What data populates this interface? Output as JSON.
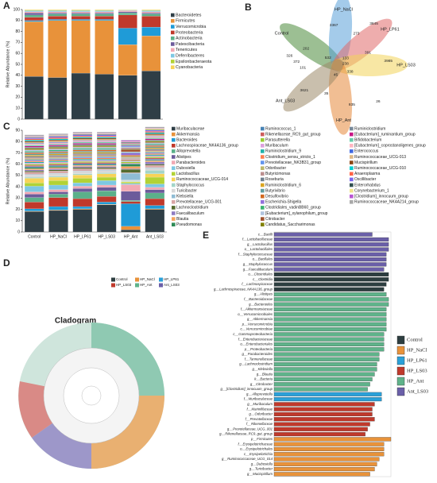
{
  "chart_data": [
    {
      "panel": "A",
      "type": "stacked-bar",
      "y_label": "Relative Abundance (%)",
      "categories": [
        null,
        null,
        null,
        null,
        null,
        null
      ],
      "ylim": [
        0,
        100
      ],
      "yticks": [
        0,
        10,
        20,
        30,
        40,
        50,
        60,
        70,
        80,
        90,
        100
      ],
      "series": [
        {
          "name": "Bacteroidetes",
          "color": "#2f3e46",
          "values": [
            39,
            38,
            42,
            41,
            40,
            44
          ]
        },
        {
          "name": "Firmicutes",
          "color": "#e8923a",
          "values": [
            50,
            52,
            48,
            49,
            28,
            32
          ]
        },
        {
          "name": "Verrucomicrobia",
          "color": "#1f9bd7",
          "values": [
            1,
            1,
            1,
            1,
            15,
            8
          ]
        },
        {
          "name": "Proteobacteria",
          "color": "#c0392b",
          "values": [
            3,
            3,
            3,
            3,
            12,
            10
          ]
        },
        {
          "name": "Actinobacteria",
          "color": "#5bb08a",
          "values": [
            2,
            2,
            2,
            2,
            2,
            2
          ]
        },
        {
          "name": "Patescibacteria",
          "color": "#6c5b9b",
          "values": [
            2,
            1,
            1,
            1,
            1,
            1
          ]
        },
        {
          "name": "Tenericutes",
          "color": "#f2a9b4",
          "values": [
            1,
            1,
            1,
            1,
            1,
            1
          ]
        },
        {
          "name": "Deferribacteres",
          "color": "#7ec8e3",
          "values": [
            1,
            1,
            1,
            1,
            0.5,
            1
          ]
        },
        {
          "name": "Epsilonbacteraeota",
          "color": "#b2d235",
          "values": [
            0.5,
            0.5,
            0.5,
            0.5,
            0.3,
            0.5
          ]
        },
        {
          "name": "Cyanobacteria",
          "color": "#f7d358",
          "values": [
            0.5,
            0.5,
            0.5,
            0.5,
            0.2,
            0.5
          ]
        }
      ]
    },
    {
      "panel": "B",
      "type": "venn",
      "sets": [
        {
          "name": "Control",
          "color": "#4a8a3a"
        },
        {
          "name": "HP_NaCl",
          "color": "#5aa0d8"
        },
        {
          "name": "HP_LP61",
          "color": "#e06a6a"
        },
        {
          "name": "HP_LS03",
          "color": "#f3d35a"
        },
        {
          "name": "HP_Ant",
          "color": "#e6883a"
        },
        {
          "name": "Ant_LS03",
          "color": "#9c8a6a"
        }
      ],
      "counts": [
        202,
        3367,
        273,
        3845,
        391,
        3985,
        26,
        835,
        35,
        3621,
        101,
        372,
        326,
        532,
        133,
        338,
        45,
        238
      ]
    },
    {
      "panel": "C",
      "type": "stacked-bar",
      "y_label": "Relative Abundance (%)",
      "categories": [
        "Control",
        "HP_NaCl",
        "HP_LP61",
        "HP_LS03",
        "HP_Ant",
        "Ant_LS03"
      ],
      "ylim": [
        0,
        90
      ],
      "yticks": [
        0,
        10,
        20,
        30,
        40,
        50,
        60,
        70,
        80,
        90
      ],
      "series": [
        {
          "name": "Muribaculaceae",
          "color": "#2f3e46",
          "values": [
            18,
            19,
            20,
            24,
            2,
            20
          ]
        },
        {
          "name": "Akkermansia",
          "color": "#e8923a",
          "values": [
            0.5,
            0.5,
            0.5,
            0.5,
            3,
            0.5
          ]
        },
        {
          "name": "Bacteroides",
          "color": "#1f9bd7",
          "values": [
            2,
            3,
            2,
            2,
            20,
            3
          ]
        },
        {
          "name": "Lachnospiraceae_NK4A136_group",
          "color": "#c0392b",
          "values": [
            6,
            8,
            7,
            5,
            2,
            6
          ]
        },
        {
          "name": "Alloprevotella",
          "color": "#5bb08a",
          "values": [
            4,
            3,
            6,
            5,
            1,
            5
          ]
        },
        {
          "name": "Alistipes",
          "color": "#6c5b9b",
          "values": [
            3,
            2,
            3,
            3,
            8,
            3
          ]
        },
        {
          "name": "Parabacteroides",
          "color": "#f2a9b4",
          "values": [
            2,
            2,
            2,
            2,
            6,
            2
          ]
        },
        {
          "name": "Dubosiella",
          "color": "#7ec8e3",
          "values": [
            5,
            4,
            3,
            4,
            1,
            3
          ]
        },
        {
          "name": "Lactobacillus",
          "color": "#b2d235",
          "values": [
            3,
            4,
            4,
            3,
            1,
            6
          ]
        },
        {
          "name": "Ruminococcaceae_UCG-014",
          "color": "#f7d358",
          "values": [
            4,
            3,
            3,
            3,
            0.5,
            3
          ]
        },
        {
          "name": "Staphylococcus",
          "color": "#a3d5c9",
          "values": [
            1,
            1,
            1,
            1,
            0.5,
            3
          ]
        },
        {
          "name": "Turicibacter",
          "color": "#d8d8d8",
          "values": [
            2,
            2,
            2,
            2,
            1,
            2
          ]
        },
        {
          "name": "Klebsiella",
          "color": "#8fbcd4",
          "values": [
            0.5,
            0.5,
            0.5,
            0.5,
            6,
            0.5
          ]
        },
        {
          "name": "Prevotellaceae_UCG-001",
          "color": "#d9a6a6",
          "values": [
            2,
            2,
            2,
            1,
            0.5,
            2
          ]
        },
        {
          "name": "Lachnoclostridium",
          "color": "#556b2f",
          "values": [
            1,
            1,
            1,
            1,
            3,
            1
          ]
        },
        {
          "name": "Faecalibaculum",
          "color": "#8e7cc3",
          "values": [
            1,
            1,
            1,
            1,
            0.5,
            2
          ]
        },
        {
          "name": "Blautia",
          "color": "#f4a460",
          "values": [
            1,
            1,
            1,
            1,
            2,
            1
          ]
        },
        {
          "name": "Pseudomonas",
          "color": "#2e8b57",
          "values": [
            1,
            1,
            0.5,
            0.5,
            2,
            0.5
          ]
        },
        {
          "name": "Ruminococcus_1",
          "color": "#4682b4",
          "values": [
            1,
            1,
            1,
            1,
            0.5,
            1
          ]
        },
        {
          "name": "Rikenellaceae_RC9_gut_group",
          "color": "#cd5c5c",
          "values": [
            1,
            1,
            1,
            1,
            0.5,
            1
          ]
        },
        {
          "name": "Parasutterella",
          "color": "#9acd32",
          "values": [
            1,
            1,
            1,
            1,
            1,
            1
          ]
        },
        {
          "name": "Muribaculum",
          "color": "#dda0dd",
          "values": [
            1,
            1,
            1,
            1,
            0.5,
            1
          ]
        },
        {
          "name": "Ruminiclostridium_9",
          "color": "#20b2aa",
          "values": [
            1,
            1,
            1,
            1,
            0.5,
            1
          ]
        },
        {
          "name": "Clostridium_sensu_stricto_1",
          "color": "#ff7f50",
          "values": [
            1,
            1,
            1,
            1,
            1,
            1
          ]
        },
        {
          "name": "Prevotellaceae_NK3B31_group",
          "color": "#6495ed",
          "values": [
            1,
            1,
            1,
            1,
            0.5,
            1
          ]
        },
        {
          "name": "Odoribacter",
          "color": "#bdb76b",
          "values": [
            1,
            1,
            1,
            1,
            0.5,
            1
          ]
        },
        {
          "name": "Butyricimonas",
          "color": "#bc8f8f",
          "values": [
            1,
            1,
            1,
            1,
            0.5,
            1
          ]
        },
        {
          "name": "Roseburia",
          "color": "#708090",
          "values": [
            1,
            1,
            1,
            1,
            0.5,
            1
          ]
        },
        {
          "name": "Ruminiclostridium_6",
          "color": "#daa520",
          "values": [
            1,
            1,
            1,
            1,
            0.5,
            1
          ]
        },
        {
          "name": "Butyrivibrio",
          "color": "#5f9ea0",
          "values": [
            1,
            1,
            1,
            1,
            0.5,
            1
          ]
        },
        {
          "name": "Desulfovibrio",
          "color": "#d2691e",
          "values": [
            1,
            1,
            1,
            1,
            1,
            1
          ]
        },
        {
          "name": "Escherichia-Shigella",
          "color": "#9370db",
          "values": [
            0.5,
            0.5,
            0.5,
            0.5,
            2,
            0.5
          ]
        },
        {
          "name": "Clostridiales_vadinBB60_group",
          "color": "#3cb371",
          "values": [
            1,
            1,
            1,
            1,
            0.5,
            1
          ]
        },
        {
          "name": "[Eubacterium]_xylanophilum_group",
          "color": "#b0c4de",
          "values": [
            1,
            1,
            1,
            1,
            0.5,
            1
          ]
        },
        {
          "name": "Citrobacter",
          "color": "#a0522d",
          "values": [
            0.5,
            0.5,
            0.5,
            0.5,
            2,
            0.5
          ]
        },
        {
          "name": "Candidatus_Saccharimonas",
          "color": "#808000",
          "values": [
            1,
            1,
            1,
            1,
            0.5,
            1
          ]
        },
        {
          "name": "Ruminiclostridium",
          "color": "#778899",
          "values": [
            1,
            1,
            1,
            1,
            0.5,
            1
          ]
        },
        {
          "name": "[Eubacterium]_ruminantium_group",
          "color": "#c71585",
          "values": [
            1,
            1,
            1,
            1,
            0.5,
            1
          ]
        },
        {
          "name": "Bifidobacterium",
          "color": "#66cdaa",
          "values": [
            1,
            1,
            1,
            1,
            0.5,
            1
          ]
        },
        {
          "name": "[Eubacterium]_coprostanoligenes_group",
          "color": "#ffb6c1",
          "values": [
            1,
            1,
            1,
            1,
            0.5,
            1
          ]
        },
        {
          "name": "Enterococcus",
          "color": "#4169e1",
          "values": [
            0.5,
            0.5,
            0.5,
            0.5,
            1,
            0.5
          ]
        },
        {
          "name": "Ruminococcaceae_UCG-013",
          "color": "#deb887",
          "values": [
            1,
            1,
            1,
            1,
            0.5,
            1
          ]
        },
        {
          "name": "Mucispirillum",
          "color": "#8b4513",
          "values": [
            1,
            1,
            1,
            1,
            0.5,
            1
          ]
        },
        {
          "name": "Ruminococcaceae_UCG-010",
          "color": "#00ced1",
          "values": [
            1,
            1,
            1,
            1,
            0.5,
            1
          ]
        },
        {
          "name": "Anaeroplasma",
          "color": "#ff6347",
          "values": [
            1,
            1,
            1,
            1,
            0.5,
            1
          ]
        },
        {
          "name": "Oscillibacter",
          "color": "#7b68ee",
          "values": [
            1,
            1,
            1,
            1,
            0.5,
            1
          ]
        },
        {
          "name": "Enterorhabdus",
          "color": "#2f4f4f",
          "values": [
            0.5,
            0.5,
            0.5,
            0.5,
            0.5,
            0.5
          ]
        },
        {
          "name": "Corynebacterium_1",
          "color": "#f0e68c",
          "values": [
            0.5,
            0.5,
            0.5,
            0.5,
            0.5,
            1
          ]
        },
        {
          "name": "[Clostridium]_innocuum_group",
          "color": "#ba55d3",
          "values": [
            0.5,
            0.5,
            0.5,
            0.5,
            1,
            0.5
          ]
        },
        {
          "name": "Ruminococcaceae_NK4A214_group",
          "color": "#a9a9a9",
          "values": [
            1,
            1,
            1,
            1,
            0.5,
            1
          ]
        }
      ]
    },
    {
      "panel": "E",
      "type": "hbar",
      "xlim": [
        0,
        5
      ],
      "series": [
        {
          "name": "Control",
          "color": "#2d3e40",
          "categories": [
            "o__Clostridiales",
            "c__Clostridia",
            "f__Lachnospiraceae",
            "g__Lachnospiraceae_NK4A136_group"
          ],
          "values": [
            4.9,
            4.9,
            4.8,
            4.7
          ]
        },
        {
          "name": "HP_NaCl",
          "color": "#e8923a",
          "categories": [
            "p__Firmicutes",
            "f__Erysipelotrichaceae",
            "o__Erysipelotrichales",
            "c__Erysipelotrichia",
            "g__Ruminococcaceae_UCG_014",
            "g__Dubosiella",
            "g__Turicibacter",
            "g__Mucispirillum"
          ],
          "values": [
            5.0,
            4.7,
            4.7,
            4.7,
            4.5,
            4.4,
            4.3,
            4.1
          ]
        },
        {
          "name": "HP_LP61",
          "color": "#2aa0d8",
          "categories": [
            "g__Alloprevotella",
            "f__Muribaculaceae"
          ],
          "values": [
            4.6,
            4.6
          ]
        },
        {
          "name": "HP_LS03",
          "color": "#c0392b",
          "categories": [
            "g__Muribaculum",
            "f__Marinifilaceae",
            "g__Odoribacter",
            "f__Prevotellaceae",
            "f__Rikenellaceae",
            "g__Prevotellaceae_UCG_001",
            "g__Rikenellaceae_RC9_gut_group"
          ],
          "values": [
            4.3,
            4.2,
            4.2,
            4.3,
            4.1,
            4.0,
            3.9
          ]
        },
        {
          "name": "HP_Ant",
          "color": "#5fb38a",
          "categories": [
            "g__Alistipes",
            "f__Bacteroidaceae",
            "g__Bacteroides",
            "f__Akkermansiaceae",
            "o__Verrucomicrobiales",
            "g__Akkermansia",
            "p__Verrucomicrobia",
            "c__Verrucomicrobiae",
            "c__Gammaproteobacteria",
            "f__Enterobacteriaceae",
            "o__Enterobacteriales",
            "p__Proteobacteria",
            "g__Parabacteroides",
            "f__Tannerellaceae",
            "g__Lachnoclostridium",
            "g__Klebsiella",
            "g__Blautia",
            "k__Bacteria",
            "g__Citrobacter",
            "g__[Clostridium]_innocuum_group"
          ],
          "values": [
            4.8,
            4.9,
            4.9,
            4.8,
            4.8,
            4.8,
            4.8,
            4.8,
            4.7,
            4.7,
            4.7,
            4.7,
            4.5,
            4.5,
            4.4,
            4.4,
            4.3,
            4.2,
            4.1,
            4.0
          ]
        },
        {
          "name": "Ant_LS03",
          "color": "#6a5fa8",
          "categories": [
            "c__Bacilli",
            "f__Lactobacillaceae",
            "g__Lactobacillus",
            "o__Lactobacillales",
            "f__Staphylococcaceae",
            "o__Bacillales",
            "g__Staphylococcus",
            "g__Faecalibaculum"
          ],
          "values": [
            4.2,
            4.9,
            4.9,
            4.9,
            4.8,
            4.8,
            4.8,
            4.7
          ]
        }
      ],
      "order": [
        "Ant_LS03",
        "Control",
        "HP_Ant",
        "HP_LP61",
        "HP_LS03",
        "HP_NaCl"
      ]
    }
  ],
  "cladogram": {
    "panel": "D",
    "title": "Cladogram",
    "legend": [
      "Control",
      "HP_NaCl",
      "HP_LP61",
      "HP_LS03",
      "HP_Ant",
      "Ant_LS03"
    ]
  }
}
